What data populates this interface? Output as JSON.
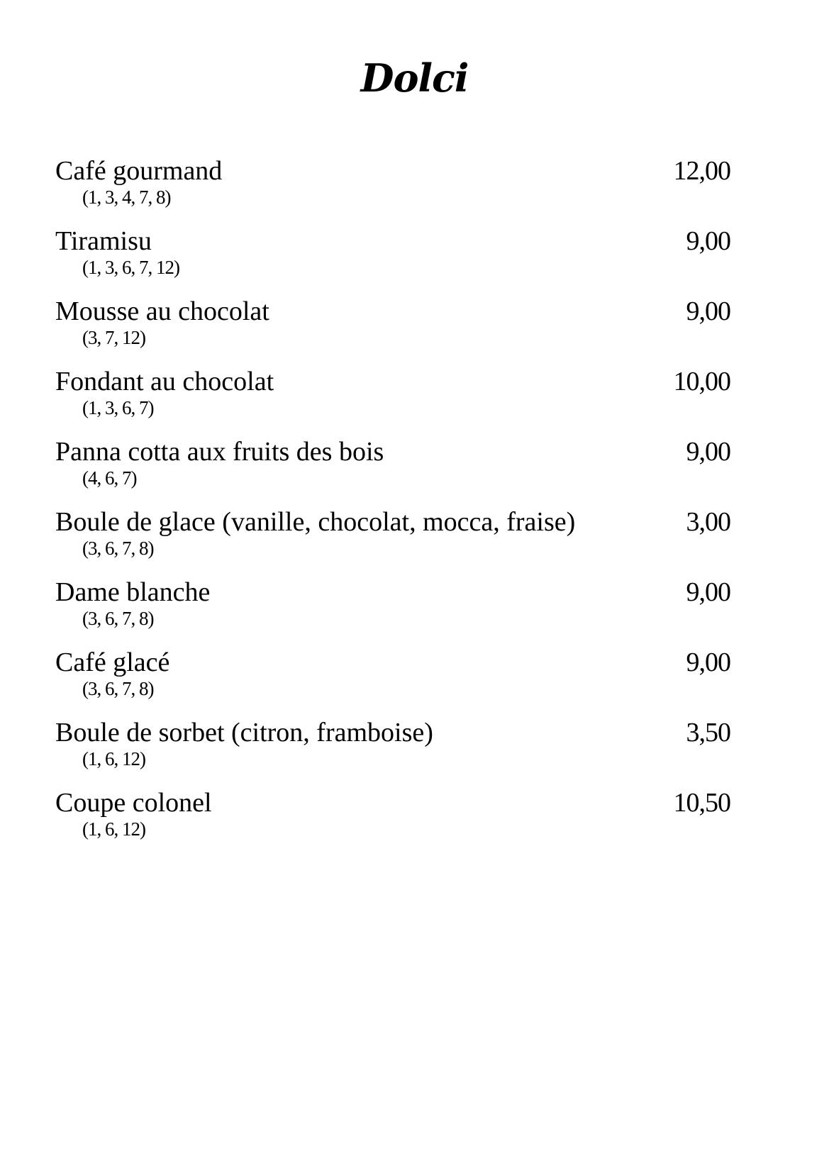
{
  "title": "Dolci",
  "items": [
    {
      "name": "Café gourmand",
      "allergens": "(1, 3, 4, 7, 8)",
      "price": "12,00"
    },
    {
      "name": "Tiramisu",
      "allergens": "(1, 3, 6, 7, 12)",
      "price": "9,00"
    },
    {
      "name": "Mousse au chocolat",
      "allergens": "(3, 7, 12)",
      "price": "9,00"
    },
    {
      "name": "Fondant au chocolat",
      "allergens": "(1, 3, 6, 7)",
      "price": "10,00"
    },
    {
      "name": "Panna cotta aux fruits des bois",
      "allergens": "(4, 6, 7)",
      "price": "9,00"
    },
    {
      "name": "Boule de glace (vanille, chocolat, mocca, fraise)",
      "allergens": "(3, 6, 7, 8)",
      "price": "3,00"
    },
    {
      "name": "Dame blanche",
      "allergens": "(3, 6, 7, 8)",
      "price": "9,00"
    },
    {
      "name": "Café glacé",
      "allergens": "(3, 6, 7, 8)",
      "price": "9,00"
    },
    {
      "name": "Boule de sorbet (citron, framboise)",
      "allergens": "(1, 6, 12)",
      "price": "3,50"
    },
    {
      "name": "Coupe colonel",
      "allergens": "(1, 6, 12)",
      "price": "10,50"
    }
  ]
}
